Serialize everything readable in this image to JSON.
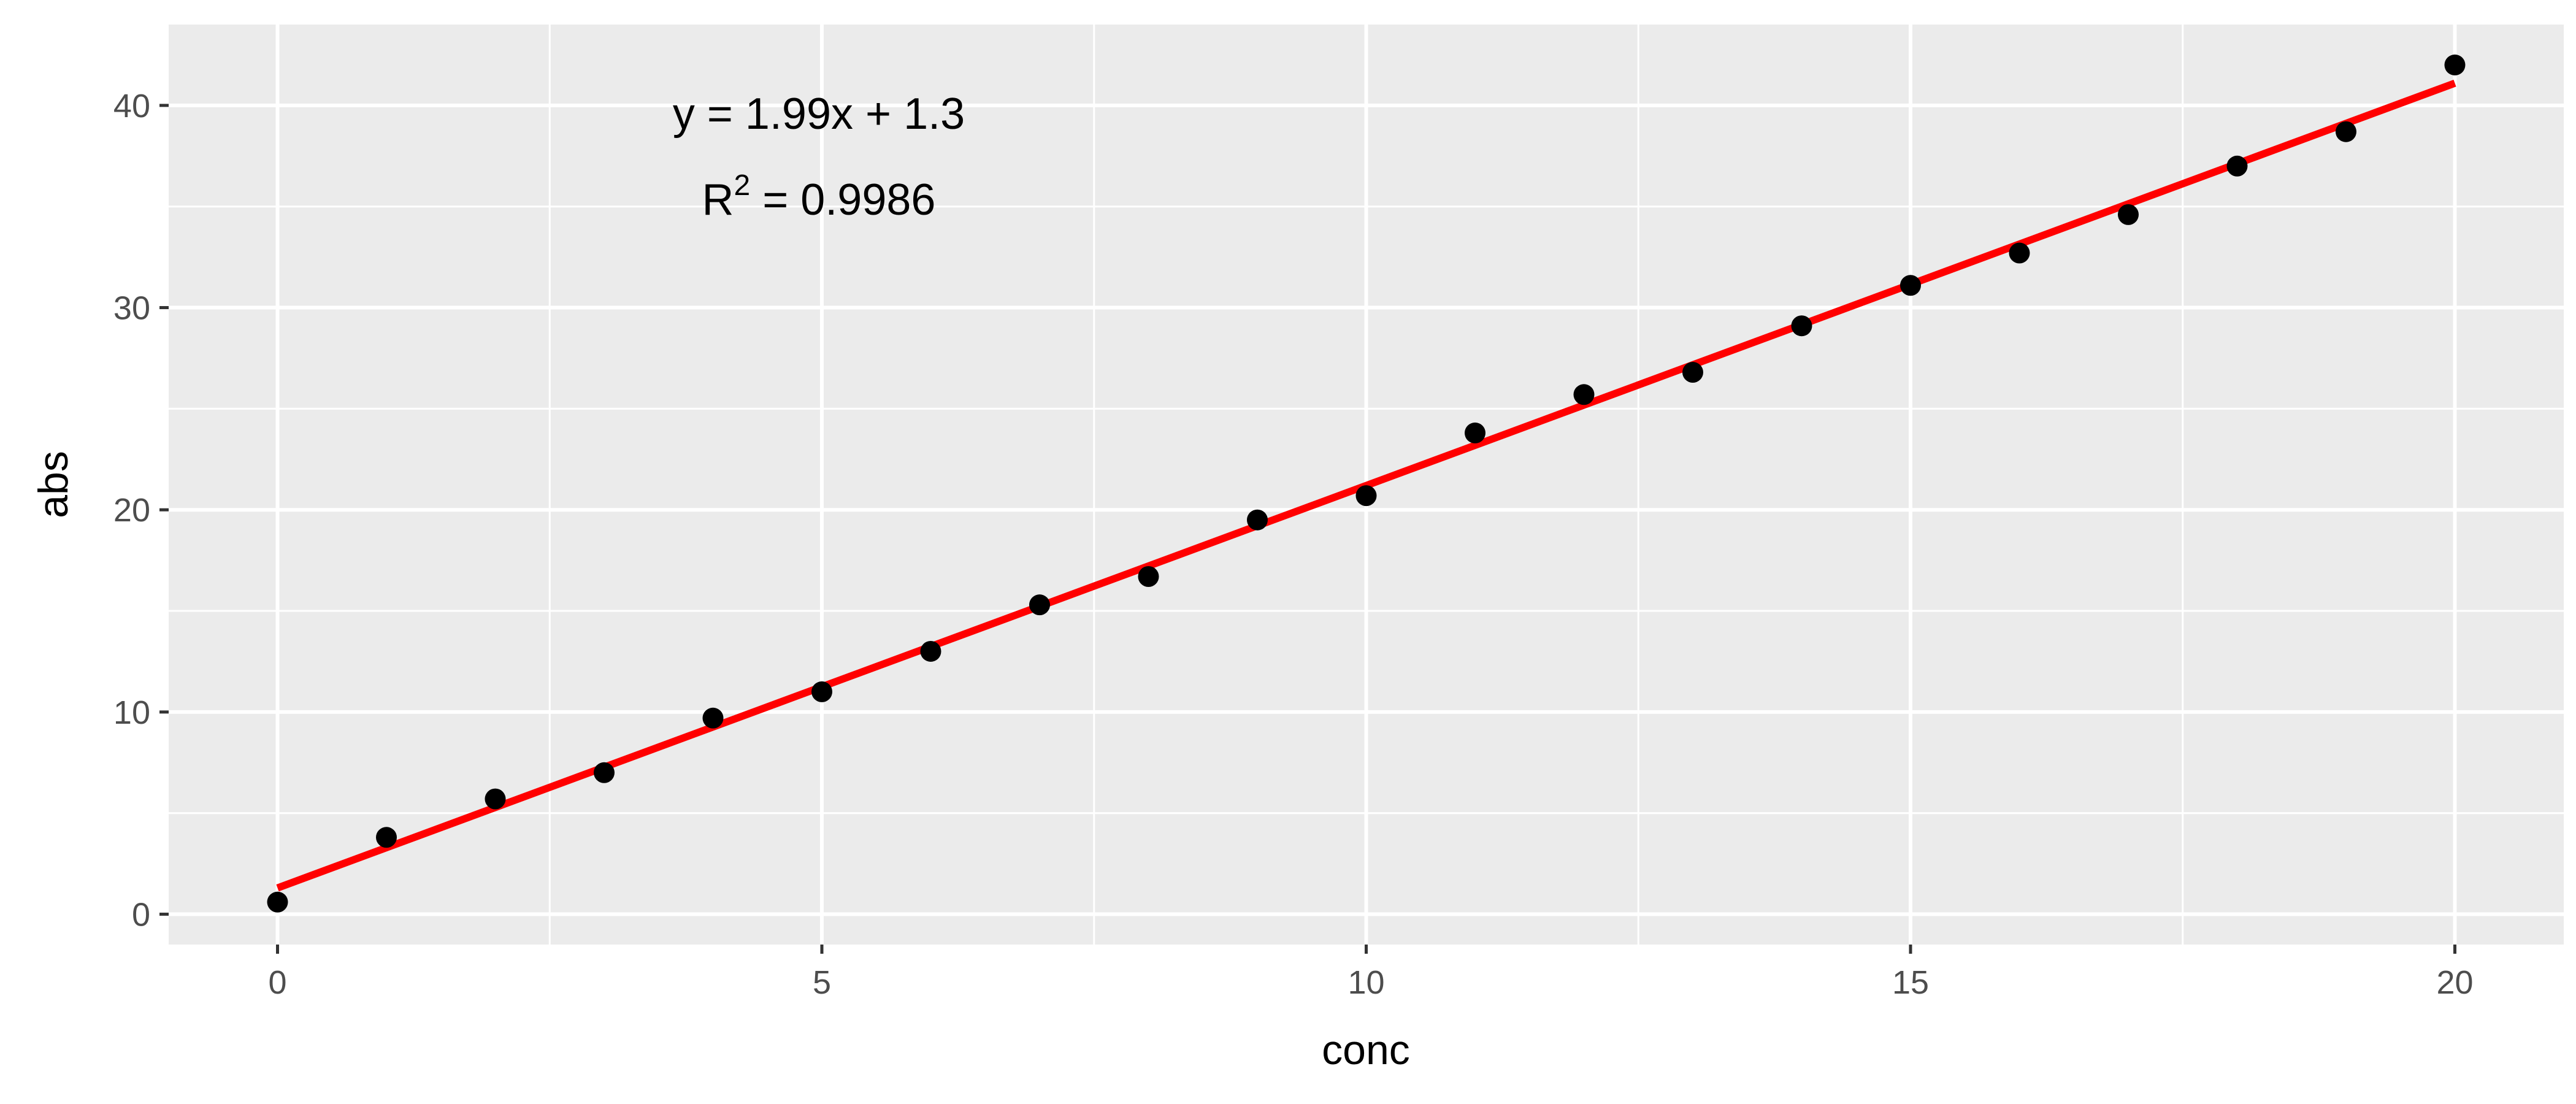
{
  "chart_data": {
    "type": "scatter",
    "xlabel": "conc",
    "ylabel": "abs",
    "xlim": [
      -1,
      21
    ],
    "ylim": [
      -1.5,
      44
    ],
    "x_ticks": [
      0,
      5,
      10,
      15,
      20
    ],
    "y_ticks": [
      0,
      10,
      20,
      30,
      40
    ],
    "x_tick_labels": [
      "0",
      "5",
      "10",
      "15",
      "20"
    ],
    "y_tick_labels": [
      "0",
      "10",
      "20",
      "30",
      "40"
    ],
    "grid": true,
    "legend": "none",
    "colors": {
      "panel": "#ebebeb",
      "grid": "#ffffff",
      "points": "#000000",
      "fit_line": "#ff0000"
    },
    "series": [
      {
        "x": [
          0,
          1,
          2,
          3,
          4,
          5,
          6,
          7,
          8,
          9,
          10,
          11,
          12,
          13,
          14,
          15,
          16,
          17,
          18,
          19,
          20
        ],
        "y": [
          0.6,
          3.8,
          5.7,
          7.0,
          9.7,
          11.0,
          13.0,
          15.3,
          16.7,
          19.5,
          20.7,
          23.8,
          25.7,
          26.8,
          29.1,
          31.1,
          32.7,
          34.6,
          37.0,
          38.7,
          42.0
        ]
      }
    ],
    "fit": {
      "slope": 1.99,
      "intercept": 1.3,
      "x_range": [
        0,
        20
      ]
    },
    "annotations": {
      "equation": "y = 1.99x + 1.3",
      "r2_base": "R",
      "r2_sup": "2",
      "r2_rest": " = 0.9986"
    }
  }
}
